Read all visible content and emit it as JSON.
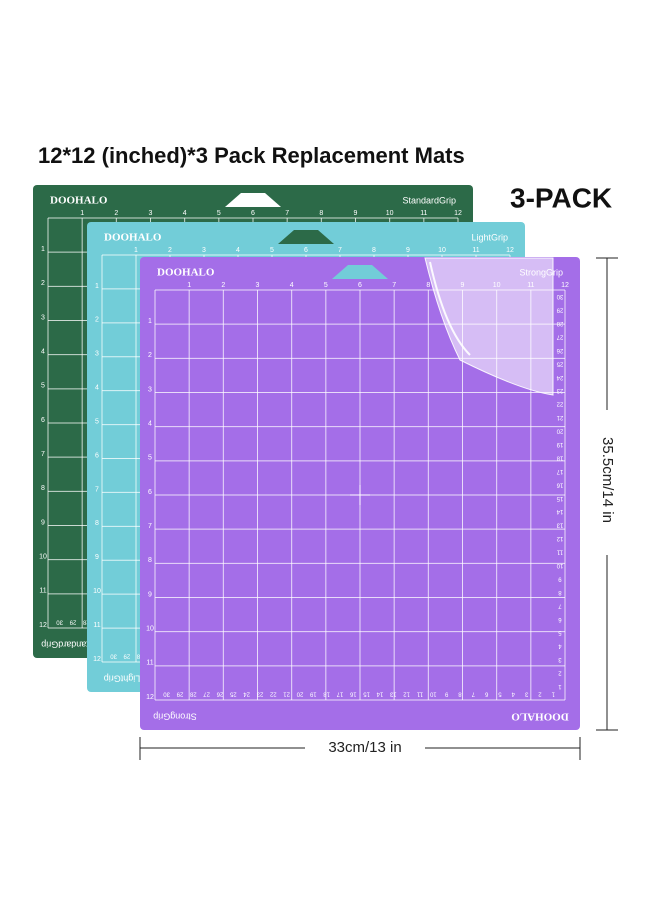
{
  "header": {
    "title": "12*12 (inched)*3 Pack Replacement Mats",
    "badge": "3-PACK"
  },
  "mats": [
    {
      "brand": "DOOHALO",
      "grip": "StandardGrip"
    },
    {
      "brand": "DOOHALO",
      "grip": "LightGrip"
    },
    {
      "brand": "DOOHALO",
      "grip": "StrongGrip"
    }
  ],
  "ruler_inches": [
    1,
    2,
    3,
    4,
    5,
    6,
    7,
    8,
    9,
    10,
    11,
    12
  ],
  "ruler_cm": [
    1,
    2,
    3,
    4,
    5,
    6,
    7,
    8,
    9,
    10,
    11,
    12,
    13,
    14,
    15,
    16,
    17,
    18,
    19,
    20,
    21,
    22,
    23,
    24,
    25,
    26,
    27,
    28,
    29,
    30
  ],
  "dimensions": {
    "height": "35.5cm/14 in",
    "width": "33cm/13 in"
  }
}
